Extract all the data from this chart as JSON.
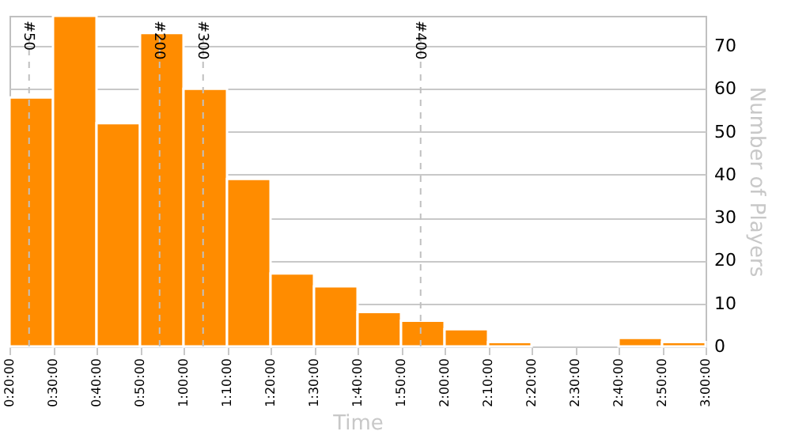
{
  "chart_data": {
    "type": "histogram",
    "xlabel": "Time",
    "ylabel": "Number of Players",
    "bins": [
      20,
      30,
      40,
      50,
      60,
      70,
      80,
      90,
      100,
      110,
      120,
      130,
      140,
      150,
      160,
      170,
      180
    ],
    "values": [
      58,
      77,
      52,
      73,
      60,
      39,
      17,
      14,
      8,
      6,
      4,
      1,
      0,
      0,
      2,
      1
    ],
    "color": "#ff8c00",
    "xlim": [
      20,
      180
    ],
    "xticks": [
      {
        "value": 20,
        "label": "0:20:00"
      },
      {
        "value": 30,
        "label": "0:30:00"
      },
      {
        "value": 40,
        "label": "0:40:00"
      },
      {
        "value": 50,
        "label": "0:50:00"
      },
      {
        "value": 60,
        "label": "1:00:00"
      },
      {
        "value": 70,
        "label": "1:10:00"
      },
      {
        "value": 80,
        "label": "1:20:00"
      },
      {
        "value": 90,
        "label": "1:30:00"
      },
      {
        "value": 100,
        "label": "1:40:00"
      },
      {
        "value": 110,
        "label": "1:50:00"
      },
      {
        "value": 120,
        "label": "2:00:00"
      },
      {
        "value": 130,
        "label": "2:10:00"
      },
      {
        "value": 140,
        "label": "2:20:00"
      },
      {
        "value": 150,
        "label": "2:30:00"
      },
      {
        "value": 160,
        "label": "2:40:00"
      },
      {
        "value": 170,
        "label": "2:50:00"
      },
      {
        "value": 180,
        "label": "3:00:00"
      }
    ],
    "ylim": [
      0,
      77
    ],
    "yticks": [
      0,
      10,
      20,
      30,
      40,
      50,
      60,
      70
    ],
    "grid": "y",
    "annotations": [
      {
        "text": "#50",
        "x": 24.5
      },
      {
        "text": "#200",
        "x": 54.5
      },
      {
        "text": "#300",
        "x": 64.5
      },
      {
        "text": "#400",
        "x": 114.5
      }
    ]
  }
}
